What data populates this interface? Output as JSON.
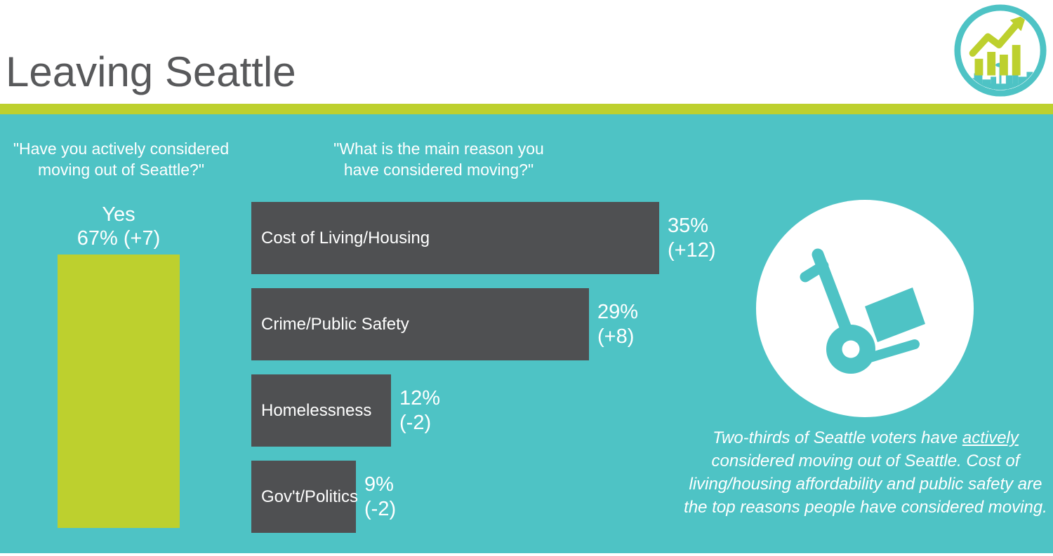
{
  "header": {
    "title": "Leaving Seattle"
  },
  "logo": {
    "name": "growth-chart-city-skyline-logo"
  },
  "colors": {
    "teal_background": "#4ec3c5",
    "lime_green": "#bdd02e",
    "dark_bar": "#4f5052",
    "title_gray": "#58595b",
    "text_white": "#ffffff"
  },
  "chart_data": [
    {
      "type": "bar",
      "orientation": "vertical",
      "question_lines": [
        "\"Have you actively considered",
        "moving out of Seattle?\""
      ],
      "categories": [
        "Yes"
      ],
      "values": [
        67
      ],
      "value_label": "67% (+7)",
      "changes": [
        7
      ],
      "bar_color": "#bdd02e",
      "ylim": [
        0,
        100
      ],
      "grid": false
    },
    {
      "type": "bar",
      "orientation": "horizontal",
      "question_lines": [
        "\"What is the main reason you",
        "have considered moving?\""
      ],
      "categories": [
        "Cost of Living/Housing",
        "Crime/Public Safety",
        "Homelessness",
        "Gov't/Politics"
      ],
      "values": [
        35,
        29,
        12,
        9
      ],
      "value_labels": [
        "35%",
        "29%",
        "12%",
        "9%"
      ],
      "change_labels": [
        "(+12)",
        "(+8)",
        "(-2)",
        "(-2)"
      ],
      "changes": [
        12,
        8,
        -2,
        -2
      ],
      "bar_color": "#4f5052",
      "xlim": [
        0,
        40
      ],
      "grid": false
    }
  ],
  "callout": {
    "text_before": "Two-thirds of Seattle voters have ",
    "text_underlined": "actively",
    "text_after": " considered moving out of Seattle. Cost of living/housing affordability and public safety are the top reasons people have considered moving."
  }
}
